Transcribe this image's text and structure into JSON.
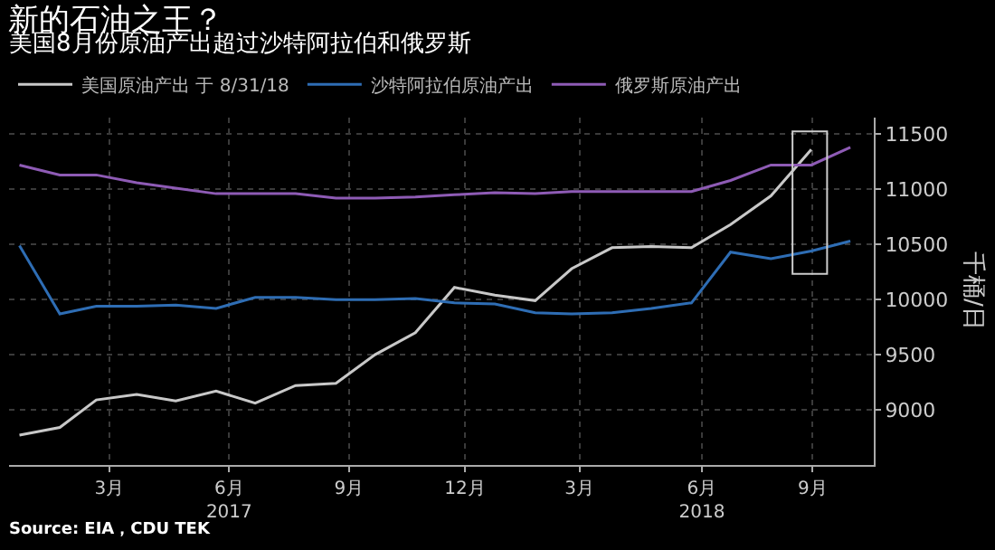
{
  "chart_data": {
    "type": "line",
    "title": "新的石油之王？",
    "subtitle": "美国8月份原油产出超过沙特阿拉伯和俄罗斯",
    "ylabel": "千桶/日",
    "annotations": [
      "Source: EIA，CDU TEK"
    ],
    "x": [
      "2016-12-31",
      "2017-01-31",
      "2017-02-28",
      "2017-03-31",
      "2017-04-30",
      "2017-05-31",
      "2017-06-30",
      "2017-07-31",
      "2017-08-31",
      "2017-09-30",
      "2017-10-31",
      "2017-11-30",
      "2017-12-31",
      "2018-01-31",
      "2018-02-28",
      "2018-03-31",
      "2018-04-30",
      "2018-05-31",
      "2018-06-30",
      "2018-07-31",
      "2018-08-31",
      "2018-09-30"
    ],
    "series": [
      {
        "name": "美国原油产出 于 8/31/18",
        "color": "#c8c8c8",
        "values": [
          8770,
          8840,
          9090,
          9140,
          9080,
          9170,
          9060,
          9220,
          9240,
          9500,
          9700,
          10110,
          10040,
          9990,
          10280,
          10470,
          10480,
          10470,
          10680,
          10940,
          11360,
          null
        ]
      },
      {
        "name": "沙特阿拉伯原油产出",
        "color": "#2e6db4",
        "values": [
          10490,
          9870,
          9940,
          9940,
          9950,
          9920,
          10020,
          10020,
          10000,
          10000,
          10010,
          9970,
          9960,
          9880,
          9870,
          9880,
          9920,
          9970,
          10430,
          10370,
          10440,
          10530
        ]
      },
      {
        "name": "俄罗斯原油产出",
        "color": "#8e5bb5",
        "values": [
          11220,
          11130,
          11130,
          11060,
          11010,
          10960,
          10960,
          10960,
          10920,
          10920,
          10930,
          10950,
          10970,
          10960,
          10980,
          10980,
          10980,
          10980,
          11080,
          11220,
          11220,
          11380
        ]
      }
    ],
    "xlim": [
      "2016-12-23",
      "2018-10-18"
    ],
    "xticks": [
      {
        "value": "2017-03-10",
        "label": "3月"
      },
      {
        "value": "2017-06-10",
        "label": "6月\n2017"
      },
      {
        "value": "2017-09-10",
        "label": "9月"
      },
      {
        "value": "2017-12-08",
        "label": "12月"
      },
      {
        "value": "2018-03-06",
        "label": "3月"
      },
      {
        "value": "2018-06-08",
        "label": "6月\n2018"
      },
      {
        "value": "2018-09-01",
        "label": "9月"
      }
    ],
    "ylim": [
      8500,
      11650
    ],
    "yticks": [
      9000,
      9500,
      10000,
      10500,
      11000,
      11500
    ],
    "grid": true,
    "legend": "top left",
    "marker": "none",
    "line_style": "solid"
  }
}
